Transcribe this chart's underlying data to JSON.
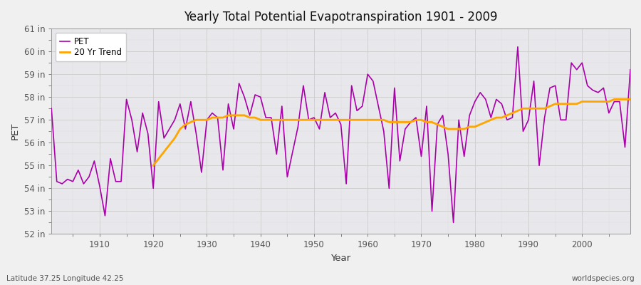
{
  "title": "Yearly Total Potential Evapotranspiration 1901 - 2009",
  "xlabel": "Year",
  "ylabel": "PET",
  "subtitle_left": "Latitude 37.25 Longitude 42.25",
  "subtitle_right": "worldspecies.org",
  "pet_color": "#AA00AA",
  "trend_color": "#FFA500",
  "bg_color": "#F0F0F0",
  "plot_bg_color": "#E8E8EC",
  "ylim": [
    52,
    61
  ],
  "ytick_values": [
    52,
    53,
    54,
    55,
    56,
    57,
    58,
    59,
    60,
    61
  ],
  "xtick_values": [
    1910,
    1920,
    1930,
    1940,
    1950,
    1960,
    1970,
    1980,
    1990,
    2000
  ],
  "years": [
    1901,
    1902,
    1903,
    1904,
    1905,
    1906,
    1907,
    1908,
    1909,
    1910,
    1911,
    1912,
    1913,
    1914,
    1915,
    1916,
    1917,
    1918,
    1919,
    1920,
    1921,
    1922,
    1923,
    1924,
    1925,
    1926,
    1927,
    1928,
    1929,
    1930,
    1931,
    1932,
    1933,
    1934,
    1935,
    1936,
    1937,
    1938,
    1939,
    1940,
    1941,
    1942,
    1943,
    1944,
    1945,
    1946,
    1947,
    1948,
    1949,
    1950,
    1951,
    1952,
    1953,
    1954,
    1955,
    1956,
    1957,
    1958,
    1959,
    1960,
    1961,
    1962,
    1963,
    1964,
    1965,
    1966,
    1967,
    1968,
    1969,
    1970,
    1971,
    1972,
    1973,
    1974,
    1975,
    1976,
    1977,
    1978,
    1979,
    1980,
    1981,
    1982,
    1983,
    1984,
    1985,
    1986,
    1987,
    1988,
    1989,
    1990,
    1991,
    1992,
    1993,
    1994,
    1995,
    1996,
    1997,
    1998,
    1999,
    2000,
    2001,
    2002,
    2003,
    2004,
    2005,
    2006,
    2007,
    2008,
    2009
  ],
  "pet_values": [
    57.5,
    54.3,
    54.2,
    54.4,
    54.3,
    54.8,
    54.2,
    54.5,
    55.2,
    54.1,
    52.8,
    55.3,
    54.3,
    54.3,
    57.9,
    57.0,
    55.6,
    57.3,
    56.4,
    54.0,
    57.8,
    56.2,
    56.6,
    57.0,
    57.7,
    56.6,
    57.8,
    56.4,
    54.7,
    57.0,
    57.3,
    57.1,
    54.8,
    57.7,
    56.6,
    58.6,
    58.0,
    57.2,
    58.1,
    58.0,
    57.1,
    57.1,
    55.5,
    57.6,
    54.5,
    55.6,
    56.7,
    58.5,
    57.0,
    57.1,
    56.6,
    58.2,
    57.1,
    57.3,
    56.8,
    54.2,
    58.5,
    57.4,
    57.6,
    59.0,
    58.7,
    57.6,
    56.5,
    54.0,
    58.4,
    55.2,
    56.6,
    56.9,
    57.1,
    55.4,
    57.6,
    53.0,
    56.8,
    57.2,
    55.5,
    52.5,
    57.0,
    55.4,
    57.2,
    57.8,
    58.2,
    57.9,
    57.1,
    57.9,
    57.7,
    57.0,
    57.1,
    60.2,
    56.5,
    57.0,
    58.7,
    55.0,
    57.1,
    58.4,
    58.5,
    57.0,
    57.0,
    59.5,
    59.2,
    59.5,
    58.5,
    58.3,
    58.2,
    58.4,
    57.3,
    57.8,
    57.8,
    55.8,
    59.2
  ],
  "trend_values": [
    null,
    null,
    null,
    null,
    null,
    null,
    null,
    null,
    null,
    null,
    null,
    null,
    null,
    null,
    null,
    null,
    null,
    null,
    null,
    55.0,
    55.3,
    55.6,
    55.9,
    56.2,
    56.6,
    56.8,
    56.9,
    57.0,
    57.0,
    57.0,
    57.1,
    57.1,
    57.1,
    57.2,
    57.2,
    57.2,
    57.2,
    57.1,
    57.1,
    57.0,
    57.0,
    57.0,
    57.0,
    57.0,
    57.0,
    57.0,
    57.0,
    57.0,
    57.0,
    57.0,
    57.0,
    57.0,
    57.0,
    57.0,
    57.0,
    57.0,
    57.0,
    57.0,
    57.0,
    57.0,
    57.0,
    57.0,
    57.0,
    56.9,
    56.9,
    56.9,
    56.9,
    56.9,
    57.0,
    57.0,
    56.9,
    56.9,
    56.8,
    56.7,
    56.6,
    56.6,
    56.6,
    56.6,
    56.7,
    56.7,
    56.8,
    56.9,
    57.0,
    57.1,
    57.1,
    57.2,
    57.3,
    57.4,
    57.5,
    57.5,
    57.5,
    57.5,
    57.5,
    57.6,
    57.7,
    57.7,
    57.7,
    57.7,
    57.7,
    57.8,
    57.8,
    57.8,
    57.8,
    57.8,
    57.8,
    57.9,
    57.9,
    57.9,
    57.9
  ]
}
